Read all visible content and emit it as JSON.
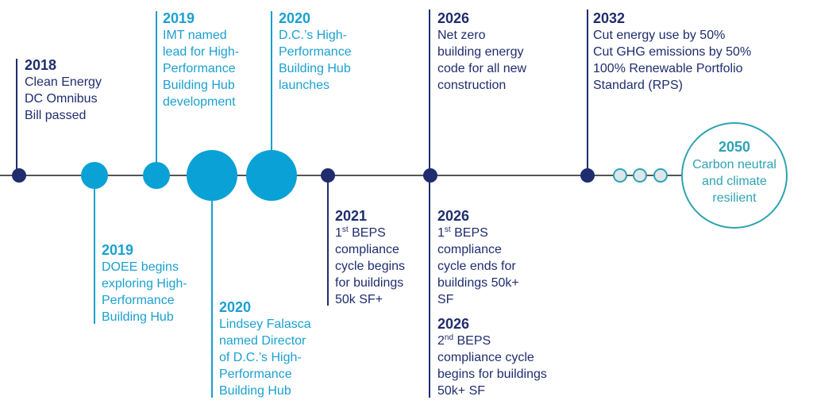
{
  "colors": {
    "navy": "#1f2d6e",
    "cyan": "#1ba0d0",
    "teal": "#2ea3b3",
    "line": "#555555",
    "future_fill": "#dde6ea"
  },
  "events": [
    {
      "id": "e2018",
      "year": "2018",
      "lines": [
        {
          "text": "Clean Energy"
        },
        {
          "text": "DC Omnibus"
        },
        {
          "text": "Bill passed"
        }
      ]
    },
    {
      "id": "e2019a",
      "year": "2019",
      "lines": [
        {
          "text": "IMT named"
        },
        {
          "text": "lead for High-"
        },
        {
          "text": "Performance"
        },
        {
          "text": "Building Hub"
        },
        {
          "text": "development"
        }
      ]
    },
    {
      "id": "e2020a",
      "year": "2020",
      "lines": [
        {
          "text": "D.C.’s High-"
        },
        {
          "text": "Performance"
        },
        {
          "text": "Building Hub"
        },
        {
          "text": "launches"
        }
      ]
    },
    {
      "id": "e2026a",
      "year": "2026",
      "lines": [
        {
          "text": "Net zero"
        },
        {
          "text": "building energy"
        },
        {
          "text": "code for all new"
        },
        {
          "text": "construction"
        }
      ]
    },
    {
      "id": "e2032",
      "year": "2032",
      "lines": [
        {
          "text": "Cut energy use by 50%"
        },
        {
          "text": "Cut GHG emissions by 50%"
        },
        {
          "text": "100% Renewable Portfolio"
        },
        {
          "text": "Standard (RPS)"
        }
      ]
    },
    {
      "id": "e2019b",
      "year": "2019",
      "lines": [
        {
          "text": "DOEE begins"
        },
        {
          "text": "exploring High-"
        },
        {
          "text": "Performance"
        },
        {
          "text": "Building Hub"
        }
      ]
    },
    {
      "id": "e2020b",
      "year": "2020",
      "lines": [
        {
          "text": "Lindsey Falasca"
        },
        {
          "text": "named Director"
        },
        {
          "text": "of D.C.’s High-"
        },
        {
          "text": "Performance"
        },
        {
          "text": "Building Hub"
        }
      ]
    },
    {
      "id": "e2021",
      "year": "2021",
      "lines": [
        {
          "sup": "st",
          "text": "1",
          "rest": " BEPS"
        },
        {
          "text": "compliance"
        },
        {
          "text": "cycle begins"
        },
        {
          "text": "for buildings"
        },
        {
          "text": "50k SF+"
        }
      ]
    },
    {
      "id": "e2026b",
      "year": "2026",
      "lines": [
        {
          "sup": "st",
          "text": "1",
          "rest": " BEPS"
        },
        {
          "text": "compliance"
        },
        {
          "text": "cycle ends for"
        },
        {
          "text": "buildings 50k+"
        },
        {
          "text": "SF"
        }
      ]
    },
    {
      "id": "e2026c",
      "year": "2026",
      "lines": [
        {
          "sup": "nd",
          "text": "2",
          "rest": " BEPS"
        },
        {
          "text": "compliance cycle"
        },
        {
          "text": "begins for buildings"
        },
        {
          "text": "50k+ SF"
        }
      ]
    }
  ],
  "goal": {
    "year": "2050",
    "lines": [
      "Carbon neutral",
      "and climate",
      "resilient"
    ]
  }
}
